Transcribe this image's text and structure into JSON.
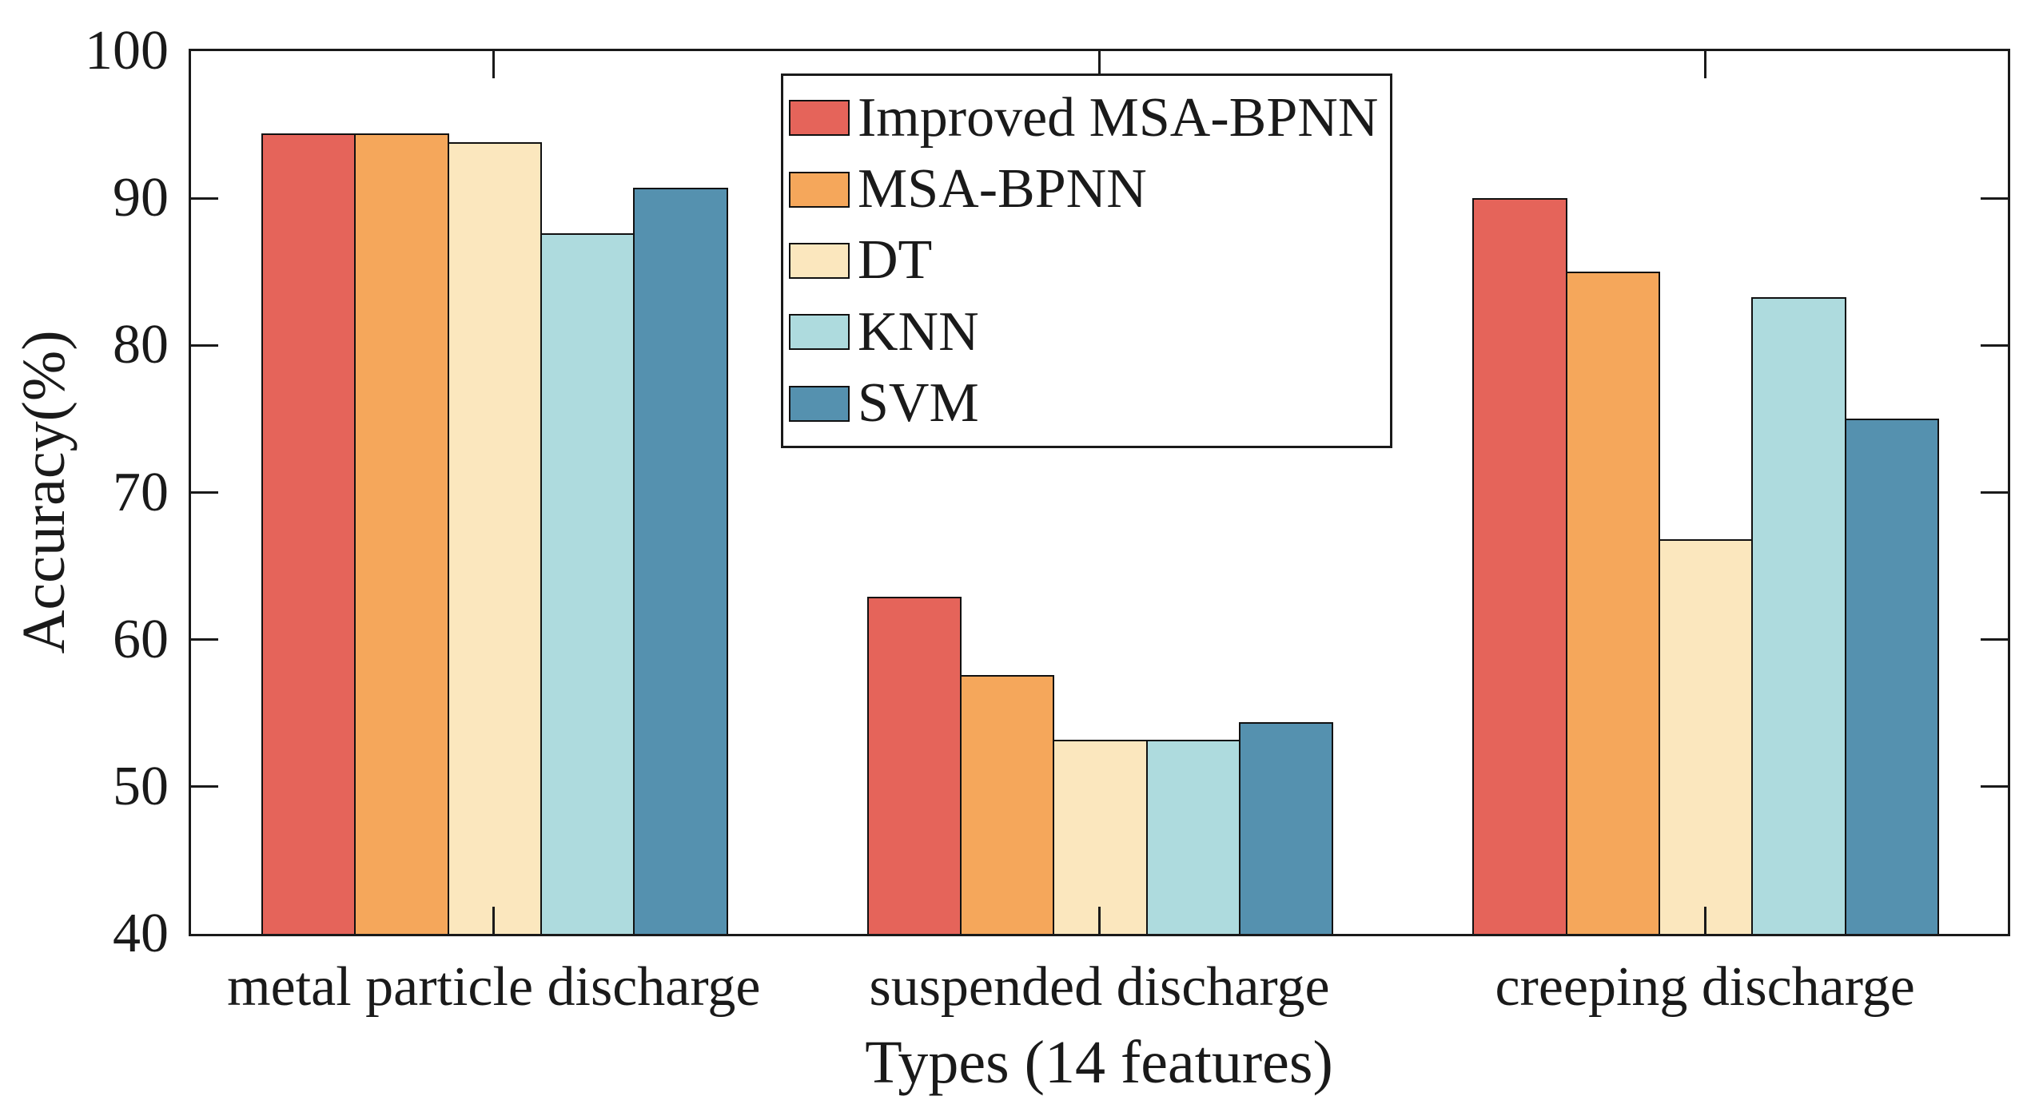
{
  "figure": {
    "xlabel": "Types (14 features)",
    "ylabel": "Accuracy(%)"
  },
  "chart_data": {
    "type": "bar",
    "title": "",
    "xlabel": "Types (14 features)",
    "ylabel": "Accuracy(%)",
    "categories": [
      "metal particle discharge",
      "suspended discharge",
      "creeping discharge"
    ],
    "series": [
      {
        "name": "Improved MSA-BPNN",
        "color": "#E5645A",
        "values": [
          94.4,
          62.9,
          90.0
        ]
      },
      {
        "name": "MSA-BPNN",
        "color": "#F5A75B",
        "values": [
          94.4,
          57.6,
          85.0
        ]
      },
      {
        "name": "DT",
        "color": "#FBE7BE",
        "values": [
          93.8,
          53.2,
          66.8
        ]
      },
      {
        "name": "KNN",
        "color": "#AEDBDE",
        "values": [
          87.6,
          53.2,
          83.3
        ]
      },
      {
        "name": "SVM",
        "color": "#5591AF",
        "values": [
          90.7,
          54.4,
          75.0
        ]
      }
    ],
    "ylim": [
      40,
      100
    ],
    "yticks": [
      40,
      50,
      60,
      70,
      80,
      90,
      100
    ],
    "grid": false,
    "legend_position": "inside upper center",
    "bar_edge_color": "#111111",
    "axis_color": "#1a1a1a"
  }
}
